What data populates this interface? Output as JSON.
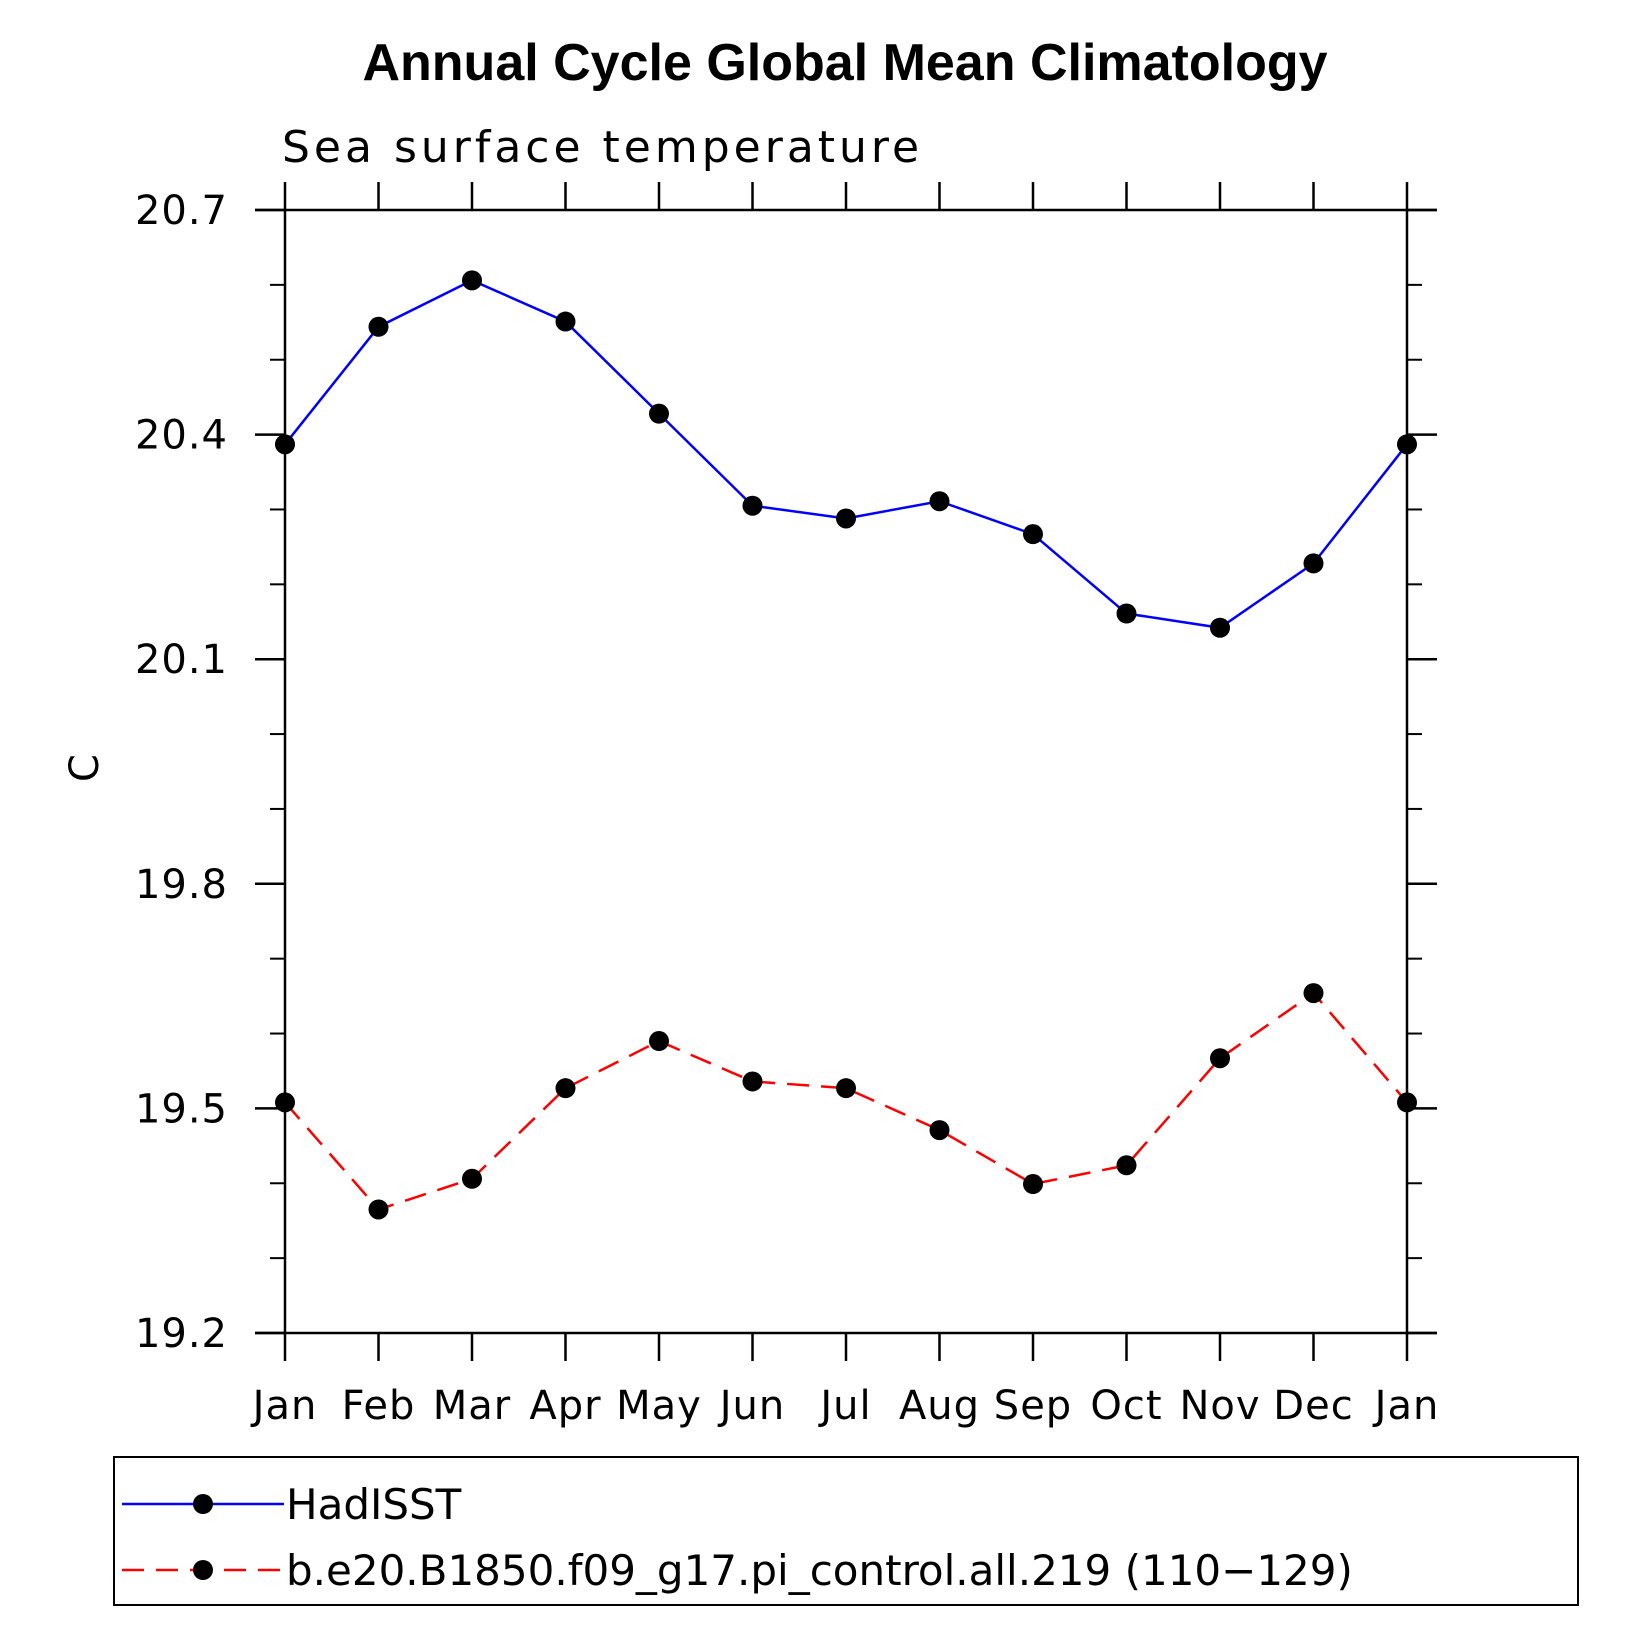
{
  "chart_data": {
    "type": "line",
    "title": "Annual Cycle Global Mean Climatology",
    "subtitle": "Sea surface temperature",
    "xlabel": "",
    "ylabel": "C",
    "categories": [
      "Jan",
      "Feb",
      "Mar",
      "Apr",
      "May",
      "Jun",
      "Jul",
      "Aug",
      "Sep",
      "Oct",
      "Nov",
      "Dec",
      "Jan"
    ],
    "ylim": [
      19.2,
      20.7
    ],
    "y_ticks": [
      "19.2",
      "19.5",
      "19.8",
      "20.1",
      "20.4",
      "20.7"
    ],
    "y_minor_step": 0.1,
    "grid": false,
    "legend_position": "bottom",
    "series": [
      {
        "name": "HadISST",
        "color": "#0000ff",
        "line_style": "solid",
        "marker": "circle",
        "values": [
          20.387,
          20.544,
          20.606,
          20.551,
          20.428,
          20.305,
          20.288,
          20.311,
          20.267,
          20.161,
          20.142,
          20.228,
          20.387
        ]
      },
      {
        "name": "b.e20.B1850.f09_g17.pi_control.all.219 (110−129)",
        "color": "#ff0000",
        "line_style": "dashed",
        "marker": "circle",
        "values": [
          19.508,
          19.365,
          19.406,
          19.527,
          19.59,
          19.536,
          19.527,
          19.471,
          19.399,
          19.424,
          19.567,
          19.654,
          19.508
        ]
      }
    ]
  }
}
